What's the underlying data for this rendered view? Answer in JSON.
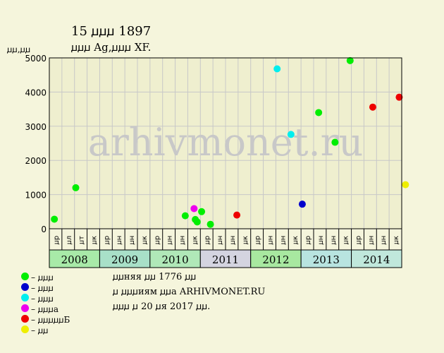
{
  "header": {
    "title": "15 ꙡꙡꙡ 1897",
    "subtitle": "ꙡꙡꙡ Ag,ꙡꙡꙡ XF.",
    "y_unit": "ꙡꙡ,ꙡꙡ"
  },
  "colors": {
    "background": "#f5f5dc",
    "plot_bg": "#efefcf",
    "grid": "#c8c8c8",
    "watermark": "#c8c8c8"
  },
  "watermark": "arhivmonet.ru",
  "chart_data": {
    "type": "scatter",
    "ylim": [
      0,
      5000
    ],
    "yticks": [
      0,
      1000,
      2000,
      3000,
      4000,
      5000
    ],
    "grid": true,
    "quarter_labels": [
      "ꙡр",
      "ꙡл",
      "ꙡт",
      "ꙡк",
      "ꙡр",
      "ꙡн",
      "ꙡн",
      "ꙡк",
      "ꙡр",
      "ꙡн",
      "ꙡн",
      "ꙡк",
      "ꙡр",
      "ꙡн",
      "ꙡн",
      "ꙡк",
      "ꙡр",
      "ꙡн",
      "ꙡн",
      "ꙡк",
      "ꙡр",
      "ꙡн",
      "ꙡн",
      "ꙡк",
      "ꙡр",
      "ꙡн",
      "ꙡн",
      "ꙡк"
    ],
    "years": [
      {
        "label": "2008",
        "color": "#a8eaa8"
      },
      {
        "label": "2009",
        "color": "#a8e0c8"
      },
      {
        "label": "2010",
        "color": "#b0e8b8"
      },
      {
        "label": "2011",
        "color": "#d4d4e0"
      },
      {
        "label": "2012",
        "color": "#a8e8a0"
      },
      {
        "label": "2013",
        "color": "#b8e4e0"
      },
      {
        "label": "2014",
        "color": "#c0e8dc"
      }
    ],
    "series": [
      {
        "color": "#00ee00",
        "points": [
          {
            "quarter": 0.4,
            "value": 280
          },
          {
            "quarter": 2.1,
            "value": 1200
          },
          {
            "quarter": 10.8,
            "value": 380
          },
          {
            "quarter": 11.6,
            "value": 270
          },
          {
            "quarter": 11.75,
            "value": 200
          },
          {
            "quarter": 12.1,
            "value": 500
          },
          {
            "quarter": 12.8,
            "value": 130
          },
          {
            "quarter": 21.4,
            "value": 3400
          },
          {
            "quarter": 22.7,
            "value": 2530
          },
          {
            "quarter": 23.9,
            "value": 4920
          }
        ]
      },
      {
        "color": "#0000cc",
        "points": [
          {
            "quarter": 20.1,
            "value": 720
          }
        ]
      },
      {
        "color": "#00eeee",
        "points": [
          {
            "quarter": 18.1,
            "value": 4680
          },
          {
            "quarter": 19.2,
            "value": 2760
          }
        ]
      },
      {
        "color": "#ee00ee",
        "points": [
          {
            "quarter": 11.5,
            "value": 590
          }
        ]
      },
      {
        "color": "#ee0000",
        "points": [
          {
            "quarter": 14.9,
            "value": 400
          },
          {
            "quarter": 25.7,
            "value": 3560
          },
          {
            "quarter": 27.8,
            "value": 3850
          }
        ]
      },
      {
        "color": "#eeee00",
        "points": [
          {
            "quarter": 28.3,
            "value": 1290
          }
        ]
      }
    ]
  },
  "legend": [
    {
      "label": "– ꙡꙡꙡ",
      "color": "#00ee00"
    },
    {
      "label": "– ꙡꙡꙡ",
      "color": "#0000cc"
    },
    {
      "label": "– ꙡꙡꙡ",
      "color": "#00eeee"
    },
    {
      "label": "– ꙡꙡꙡа",
      "color": "#ee00ee"
    },
    {
      "label": "– ꙡꙡꙡꙡꙡБ",
      "color": "#ee0000"
    },
    {
      "label": "– ꙡꙡ",
      "color": "#eeee00"
    }
  ],
  "info": {
    "line1": "ꙡꙡняя ꙡꙡ 1776 ꙡꙡ",
    "line2": "ꙡ ꙡꙡꙡиям ꙡꙡа ARHIVMONET.RU",
    "line3": "ꙡꙡꙡ ꙡ 20 ꙡя 2017 ꙡꙡ."
  }
}
